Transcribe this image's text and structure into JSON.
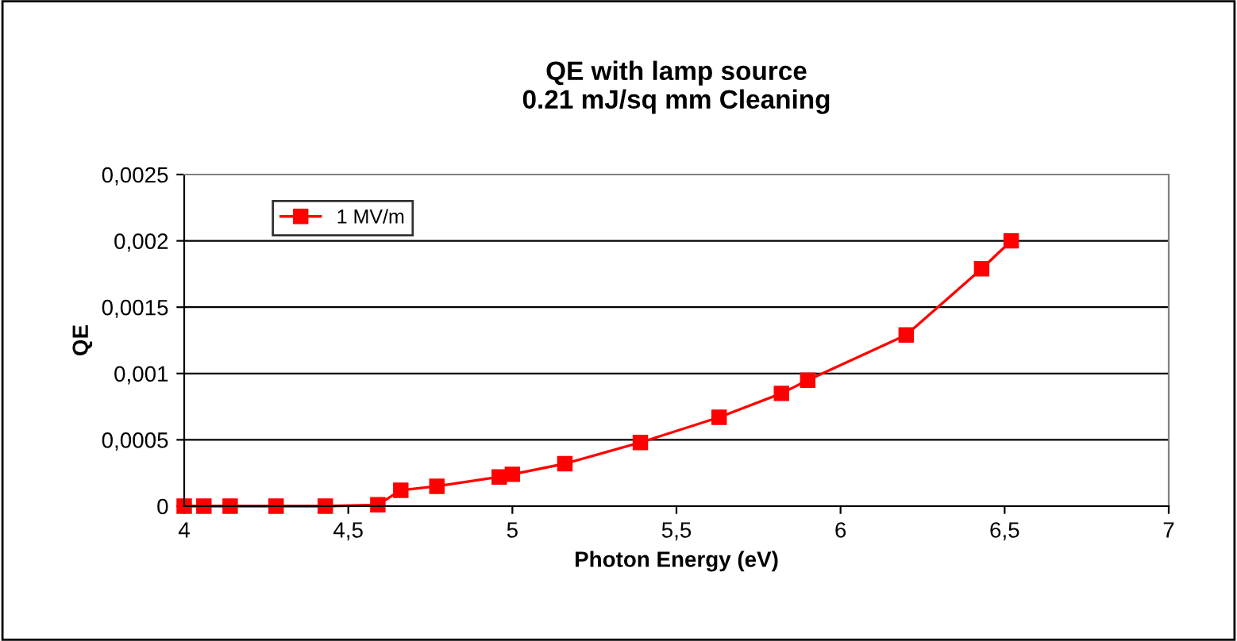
{
  "chart_data": {
    "type": "line",
    "title": "QE with lamp source\n0.21 mJ/sq mm Cleaning",
    "xlabel": "Photon Energy (eV)",
    "ylabel": "QE",
    "x": [
      4.0,
      4.06,
      4.14,
      4.28,
      4.43,
      4.59,
      4.66,
      4.77,
      4.96,
      5.0,
      5.16,
      5.39,
      5.63,
      5.82,
      5.9,
      6.2,
      6.43,
      6.52
    ],
    "series": [
      {
        "name": "1 MV/m",
        "color": "#ff0000",
        "values": [
          0,
          0,
          0,
          0,
          0,
          1e-05,
          0.00012,
          0.00015,
          0.00022,
          0.00024,
          0.00032,
          0.00048,
          0.00067,
          0.00085,
          0.00095,
          0.00129,
          0.00179,
          0.002
        ]
      }
    ],
    "xlim": [
      4,
      7
    ],
    "xticks": [
      4,
      {
        "value": 4.5,
        "label": "4,5"
      },
      5,
      {
        "value": 5.5,
        "label": "5,5"
      },
      6,
      {
        "value": 6.5,
        "label": "6,5"
      },
      7
    ],
    "ylim": [
      0,
      0.0025
    ],
    "yticks": [
      0,
      {
        "value": 0.0005,
        "label": "0,0005"
      },
      {
        "value": 0.001,
        "label": "0,001"
      },
      {
        "value": 0.0015,
        "label": "0,0015"
      },
      {
        "value": 0.002,
        "label": "0,002"
      },
      {
        "value": 0.0025,
        "label": "0,0025"
      }
    ],
    "grid": "y",
    "legend": "top left",
    "marker": "square",
    "line_style": "solid"
  }
}
